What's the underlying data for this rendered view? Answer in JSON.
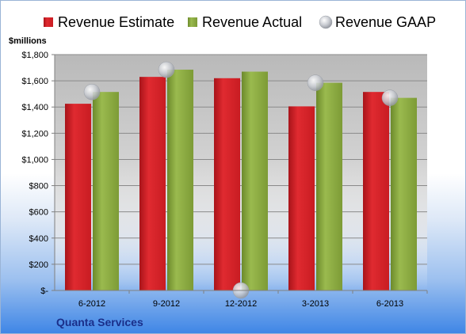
{
  "chart_data": {
    "type": "bar",
    "company": "Quanta Services",
    "ylabel": "$millions",
    "categories": [
      "6-2012",
      "9-2012",
      "12-2012",
      "3-2013",
      "6-2013"
    ],
    "ylim": [
      0,
      1800
    ],
    "yticks": [
      0,
      200,
      400,
      600,
      800,
      1000,
      1200,
      1400,
      1600,
      1800
    ],
    "ytick_labels": [
      "$-",
      "$200",
      "$400",
      "$600",
      "$800",
      "$1,000",
      "$1,200",
      "$1,400",
      "$1,600",
      "$1,800"
    ],
    "grid": true,
    "legend_position": "top",
    "series": [
      {
        "name": "Revenue Estimate",
        "kind": "bar",
        "color": "#d42027",
        "values": [
          1425,
          1630,
          1620,
          1405,
          1515
        ]
      },
      {
        "name": "Revenue Actual",
        "kind": "bar",
        "color": "#86a63c",
        "values": [
          1515,
          1685,
          1670,
          1585,
          1470
        ]
      },
      {
        "name": "Revenue GAAP",
        "kind": "marker",
        "color": "#b8bcc4",
        "values": [
          1515,
          1685,
          0,
          1585,
          1470
        ]
      }
    ]
  }
}
